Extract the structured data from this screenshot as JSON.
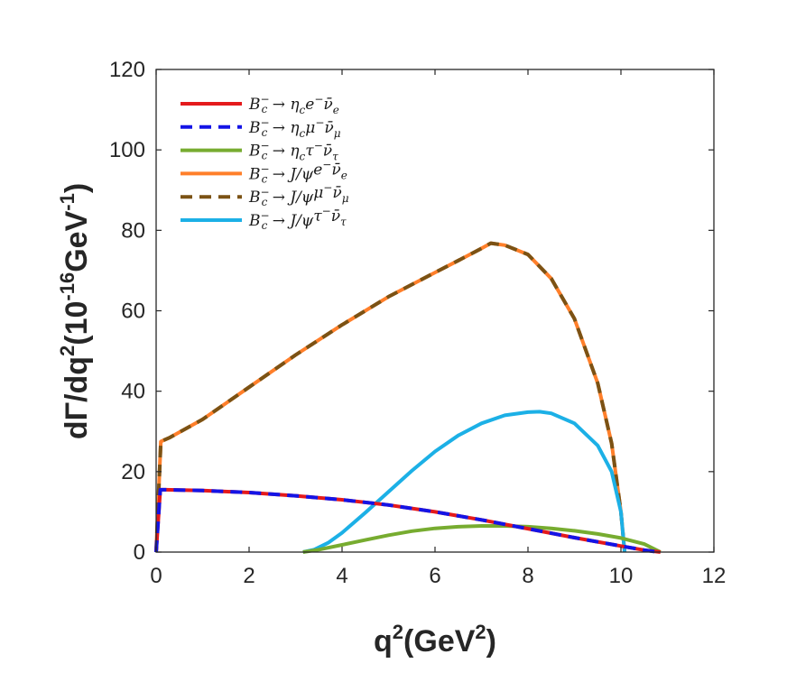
{
  "chart_data": {
    "type": "line",
    "xlabel": "q²(GeV²)",
    "xlabel_base": "q",
    "xlabel_sup": "2",
    "xlabel_unit": "(GeV",
    "xlabel_unit_sup": "2",
    "xlabel_close": ")",
    "ylabel_base": "dΓ/dq",
    "ylabel_sup": "2",
    "ylabel_unit": "(10",
    "ylabel_unit_sup": "-16",
    "ylabel_unit2": "GeV",
    "ylabel_unit2_sup": "-1",
    "ylabel_close": ")",
    "xlim": [
      0,
      12
    ],
    "ylim": [
      0,
      120
    ],
    "xticks": [
      "0",
      "2",
      "4",
      "6",
      "8",
      "10",
      "12"
    ],
    "yticks": [
      "0",
      "20",
      "40",
      "60",
      "80",
      "100",
      "120"
    ],
    "legend_position": "top-left",
    "series": [
      {
        "name": "B_c⁻ → η_c e⁻ ν̄_e",
        "legend": {
          "B": "B",
          "sub": "c",
          "sup": "−",
          "arrow": " → ",
          "meson": "η",
          "msub": "c",
          "lep": "e",
          "lsup": "−",
          "nu": "ν̄",
          "nsub": "e"
        },
        "color": "#e41a1c",
        "dash": false,
        "x": [
          0.0,
          0.09,
          0.2,
          1,
          2,
          3,
          4,
          5,
          6,
          7,
          8,
          9,
          10,
          10.5,
          10.85
        ],
        "y": [
          0,
          15.5,
          15.5,
          15.3,
          14.8,
          14.0,
          13.0,
          11.7,
          10.0,
          8.0,
          5.8,
          3.6,
          1.5,
          0.5,
          0
        ]
      },
      {
        "name": "B_c⁻ → η_c μ⁻ ν̄_μ",
        "legend": {
          "B": "B",
          "sub": "c",
          "sup": "−",
          "arrow": " → ",
          "meson": "η",
          "msub": "c",
          "lep": "μ",
          "lsup": "−",
          "nu": "ν̄",
          "nsub": "μ"
        },
        "color": "#1414e6",
        "dash": true,
        "x": [
          0.0,
          0.09,
          0.2,
          1,
          2,
          3,
          4,
          5,
          6,
          7,
          8,
          9,
          10,
          10.5,
          10.8
        ],
        "y": [
          0,
          15.5,
          15.5,
          15.3,
          14.8,
          14.0,
          13.0,
          11.7,
          10.0,
          8.0,
          5.8,
          3.6,
          1.5,
          0.5,
          0
        ]
      },
      {
        "name": "B_c⁻ → η_c τ⁻ ν̄_τ",
        "legend": {
          "B": "B",
          "sub": "c",
          "sup": "−",
          "arrow": " → ",
          "meson": "η",
          "msub": "c",
          "lep": "τ",
          "lsup": "−",
          "nu": "ν̄",
          "nsub": "τ"
        },
        "color": "#77ac30",
        "dash": false,
        "x": [
          3.16,
          3.5,
          4,
          4.5,
          5,
          5.5,
          6,
          6.5,
          7,
          7.5,
          8,
          8.5,
          9,
          9.5,
          10,
          10.5,
          10.85
        ],
        "y": [
          0,
          0.6,
          1.8,
          3.0,
          4.2,
          5.2,
          5.9,
          6.3,
          6.5,
          6.5,
          6.3,
          5.9,
          5.3,
          4.5,
          3.5,
          2.0,
          0
        ]
      },
      {
        "name": "B_c⁻ → J/ψ e⁻ ν̄_e",
        "legend": {
          "B": "B",
          "sub": "c",
          "sup": "−",
          "arrow": " → ",
          "meson": "J/ψ",
          "msub": "",
          "lep": "e",
          "lsup": "−",
          "nu": "ν̄",
          "nsub": "e"
        },
        "color": "#ff7f2a",
        "dash": false,
        "x": [
          0.0,
          0.1,
          0.3,
          1,
          2,
          3,
          4,
          5,
          6,
          6.5,
          7,
          7.2,
          7.5,
          8,
          8.5,
          9,
          9.5,
          9.8,
          10.0,
          10.08
        ],
        "y": [
          0,
          27.5,
          28.5,
          33,
          41,
          49,
          56.5,
          63.5,
          69.5,
          72.5,
          75.5,
          76.8,
          76.3,
          74,
          68,
          58,
          42,
          27,
          10,
          0
        ]
      },
      {
        "name": "B_c⁻ → J/ψ μ⁻ ν̄_μ",
        "legend": {
          "B": "B",
          "sub": "c",
          "sup": "−",
          "arrow": " → ",
          "meson": "J/ψ",
          "msub": "",
          "lep": "μ",
          "lsup": "−",
          "nu": "ν̄",
          "nsub": "μ"
        },
        "color": "#7b5214",
        "dash": true,
        "x": [
          0.0,
          0.1,
          0.3,
          1,
          2,
          3,
          4,
          5,
          6,
          6.5,
          7,
          7.2,
          7.5,
          8,
          8.5,
          9,
          9.5,
          9.8,
          10.0,
          10.08
        ],
        "y": [
          0,
          27.5,
          28.5,
          33,
          41,
          49,
          56.5,
          63.5,
          69.5,
          72.5,
          75.5,
          76.8,
          76.3,
          74,
          68,
          58,
          42,
          27,
          10,
          0
        ]
      },
      {
        "name": "B_c⁻ → J/ψ τ⁻ ν̄_τ",
        "legend": {
          "B": "B",
          "sub": "c",
          "sup": "−",
          "arrow": " → ",
          "meson": "J/ψ",
          "msub": "",
          "lep": "τ",
          "lsup": "−",
          "nu": "ν̄",
          "nsub": "τ"
        },
        "color": "#1cb0e6",
        "dash": false,
        "x": [
          3.16,
          3.4,
          3.7,
          4.0,
          4.5,
          5.0,
          5.5,
          6.0,
          6.5,
          7.0,
          7.5,
          8.0,
          8.25,
          8.5,
          9.0,
          9.5,
          9.8,
          10.0,
          10.08
        ],
        "y": [
          0,
          0.6,
          2.3,
          4.8,
          9.8,
          15.0,
          20.2,
          25.0,
          29.0,
          32.0,
          34.0,
          34.8,
          34.9,
          34.5,
          32.0,
          26.5,
          20.0,
          10.0,
          0
        ]
      }
    ]
  }
}
